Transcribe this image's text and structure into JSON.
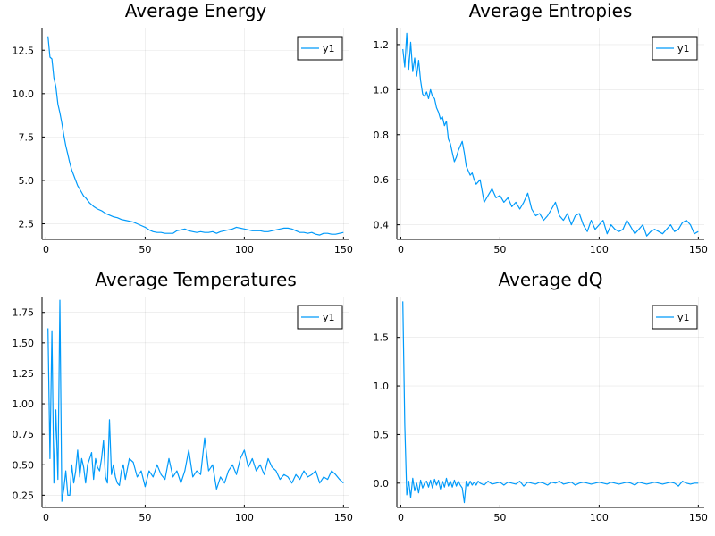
{
  "series_color": "#009AFA",
  "chart_data": [
    {
      "type": "line",
      "title": "Average Energy",
      "xlabel": "",
      "ylabel": "",
      "xlim": [
        -2,
        153
      ],
      "ylim": [
        1.6,
        13.8
      ],
      "xticks": [
        0,
        50,
        100,
        150
      ],
      "yticks": [
        2.5,
        5.0,
        7.5,
        10.0,
        12.5
      ],
      "ytick_labels": [
        "2.5",
        "5.0",
        "7.5",
        "10.0",
        "12.5"
      ],
      "grid": true,
      "legend_position": "top-right",
      "series": [
        {
          "name": "y1",
          "x": [
            1,
            2,
            3,
            4,
            5,
            6,
            7,
            8,
            9,
            10,
            11,
            12,
            13,
            14,
            15,
            16,
            17,
            18,
            19,
            20,
            22,
            24,
            26,
            28,
            30,
            32,
            34,
            36,
            38,
            40,
            42,
            44,
            46,
            48,
            50,
            52,
            54,
            56,
            58,
            60,
            62,
            64,
            66,
            68,
            70,
            72,
            74,
            76,
            78,
            80,
            82,
            84,
            86,
            88,
            90,
            92,
            94,
            96,
            98,
            100,
            102,
            104,
            106,
            108,
            110,
            112,
            114,
            116,
            118,
            120,
            122,
            124,
            126,
            128,
            130,
            132,
            134,
            136,
            138,
            140,
            142,
            144,
            146,
            148,
            150
          ],
          "y": [
            13.3,
            12.1,
            12.0,
            10.9,
            10.4,
            9.4,
            8.9,
            8.3,
            7.6,
            7.0,
            6.5,
            6.0,
            5.6,
            5.3,
            5.0,
            4.7,
            4.5,
            4.3,
            4.1,
            4.0,
            3.7,
            3.5,
            3.35,
            3.25,
            3.1,
            3.0,
            2.9,
            2.85,
            2.75,
            2.7,
            2.65,
            2.6,
            2.5,
            2.4,
            2.3,
            2.15,
            2.05,
            2.0,
            2.0,
            1.95,
            1.95,
            1.95,
            2.1,
            2.15,
            2.2,
            2.1,
            2.05,
            2.0,
            2.05,
            2.0,
            2.0,
            2.05,
            1.95,
            2.05,
            2.1,
            2.15,
            2.2,
            2.3,
            2.25,
            2.2,
            2.15,
            2.1,
            2.1,
            2.1,
            2.05,
            2.05,
            2.1,
            2.15,
            2.2,
            2.25,
            2.25,
            2.2,
            2.1,
            2.0,
            2.0,
            1.95,
            2.0,
            1.9,
            1.85,
            1.95,
            1.95,
            1.9,
            1.9,
            1.95,
            2.0
          ]
        }
      ]
    },
    {
      "type": "line",
      "title": "Average Entropies",
      "xlabel": "",
      "ylabel": "",
      "xlim": [
        -2,
        153
      ],
      "ylim": [
        0.335,
        1.275
      ],
      "xticks": [
        0,
        50,
        100,
        150
      ],
      "yticks": [
        0.4,
        0.6,
        0.8,
        1.0,
        1.2
      ],
      "ytick_labels": [
        "0.4",
        "0.6",
        "0.8",
        "1.0",
        "1.2"
      ],
      "grid": true,
      "legend_position": "top-right",
      "series": [
        {
          "name": "y1",
          "x": [
            1,
            2,
            3,
            4,
            5,
            6,
            7,
            8,
            9,
            10,
            11,
            12,
            13,
            14,
            15,
            16,
            17,
            18,
            19,
            20,
            21,
            22,
            23,
            24,
            25,
            26,
            27,
            28,
            29,
            30,
            31,
            32,
            33,
            34,
            35,
            36,
            37,
            38,
            39,
            40,
            42,
            44,
            46,
            48,
            50,
            52,
            54,
            56,
            58,
            60,
            62,
            64,
            66,
            68,
            70,
            72,
            74,
            76,
            78,
            80,
            82,
            84,
            86,
            88,
            90,
            92,
            94,
            96,
            98,
            100,
            102,
            104,
            106,
            108,
            110,
            112,
            114,
            116,
            118,
            120,
            122,
            124,
            126,
            128,
            130,
            132,
            134,
            136,
            138,
            140,
            142,
            144,
            146,
            148,
            150
          ],
          "y": [
            1.18,
            1.1,
            1.25,
            1.09,
            1.21,
            1.08,
            1.14,
            1.06,
            1.13,
            1.04,
            0.98,
            0.97,
            0.99,
            0.96,
            1.0,
            0.97,
            0.96,
            0.92,
            0.9,
            0.87,
            0.88,
            0.84,
            0.86,
            0.78,
            0.76,
            0.72,
            0.68,
            0.7,
            0.73,
            0.75,
            0.77,
            0.72,
            0.66,
            0.64,
            0.62,
            0.63,
            0.6,
            0.58,
            0.59,
            0.6,
            0.5,
            0.53,
            0.56,
            0.52,
            0.53,
            0.5,
            0.52,
            0.48,
            0.5,
            0.47,
            0.5,
            0.54,
            0.47,
            0.44,
            0.45,
            0.42,
            0.44,
            0.47,
            0.5,
            0.44,
            0.42,
            0.45,
            0.4,
            0.44,
            0.45,
            0.4,
            0.37,
            0.42,
            0.38,
            0.4,
            0.42,
            0.36,
            0.4,
            0.38,
            0.37,
            0.38,
            0.42,
            0.39,
            0.36,
            0.38,
            0.4,
            0.35,
            0.37,
            0.38,
            0.37,
            0.36,
            0.38,
            0.4,
            0.37,
            0.38,
            0.41,
            0.42,
            0.4,
            0.36,
            0.37
          ]
        }
      ]
    },
    {
      "type": "line",
      "title": "Average Temperatures",
      "xlabel": "",
      "ylabel": "",
      "xlim": [
        -2,
        153
      ],
      "ylim": [
        0.15,
        1.88
      ],
      "xticks": [
        0,
        50,
        100,
        150
      ],
      "yticks": [
        0.25,
        0.5,
        0.75,
        1.0,
        1.25,
        1.5,
        1.75
      ],
      "ytick_labels": [
        "0.25",
        "0.50",
        "0.75",
        "1.00",
        "1.25",
        "1.50",
        "1.75"
      ],
      "grid": true,
      "legend_position": "top-right",
      "series": [
        {
          "name": "y1",
          "x": [
            1,
            2,
            3,
            4,
            5,
            6,
            7,
            8,
            9,
            10,
            11,
            12,
            13,
            14,
            15,
            16,
            17,
            18,
            19,
            20,
            21,
            22,
            23,
            24,
            25,
            26,
            27,
            28,
            29,
            30,
            31,
            32,
            33,
            34,
            35,
            36,
            37,
            38,
            39,
            40,
            42,
            44,
            46,
            48,
            50,
            52,
            54,
            56,
            58,
            60,
            62,
            64,
            66,
            68,
            70,
            72,
            74,
            76,
            78,
            80,
            82,
            84,
            86,
            88,
            90,
            92,
            94,
            96,
            98,
            100,
            102,
            104,
            106,
            108,
            110,
            112,
            114,
            116,
            118,
            120,
            122,
            124,
            126,
            128,
            130,
            132,
            134,
            136,
            138,
            140,
            142,
            144,
            146,
            148,
            150
          ],
          "y": [
            1.62,
            0.55,
            1.6,
            0.35,
            0.95,
            0.38,
            1.85,
            0.2,
            0.3,
            0.45,
            0.25,
            0.25,
            0.5,
            0.35,
            0.45,
            0.62,
            0.4,
            0.55,
            0.48,
            0.35,
            0.5,
            0.55,
            0.6,
            0.38,
            0.55,
            0.48,
            0.45,
            0.55,
            0.7,
            0.4,
            0.35,
            0.87,
            0.42,
            0.5,
            0.4,
            0.35,
            0.33,
            0.45,
            0.5,
            0.38,
            0.55,
            0.52,
            0.4,
            0.45,
            0.32,
            0.45,
            0.4,
            0.5,
            0.42,
            0.38,
            0.55,
            0.4,
            0.45,
            0.35,
            0.45,
            0.62,
            0.4,
            0.45,
            0.42,
            0.72,
            0.45,
            0.5,
            0.3,
            0.4,
            0.35,
            0.45,
            0.5,
            0.42,
            0.55,
            0.62,
            0.48,
            0.55,
            0.45,
            0.5,
            0.42,
            0.55,
            0.48,
            0.45,
            0.38,
            0.42,
            0.4,
            0.35,
            0.42,
            0.38,
            0.45,
            0.4,
            0.42,
            0.45,
            0.35,
            0.4,
            0.38,
            0.45,
            0.42,
            0.38,
            0.35
          ]
        }
      ]
    },
    {
      "type": "line",
      "title": "Average dQ",
      "xlabel": "",
      "ylabel": "",
      "xlim": [
        -2,
        153
      ],
      "ylim": [
        -0.25,
        1.92
      ],
      "xticks": [
        0,
        50,
        100,
        150
      ],
      "yticks": [
        0.0,
        0.5,
        1.0,
        1.5
      ],
      "ytick_labels": [
        "0.0",
        "0.5",
        "1.0",
        "1.5"
      ],
      "grid": true,
      "legend_position": "top-right",
      "series": [
        {
          "name": "y1",
          "x": [
            1,
            2,
            3,
            4,
            5,
            6,
            7,
            8,
            9,
            10,
            11,
            12,
            13,
            14,
            15,
            16,
            17,
            18,
            19,
            20,
            21,
            22,
            23,
            24,
            25,
            26,
            27,
            28,
            29,
            30,
            31,
            32,
            33,
            34,
            35,
            36,
            37,
            38,
            39,
            40,
            42,
            44,
            46,
            48,
            50,
            52,
            54,
            56,
            58,
            60,
            62,
            64,
            66,
            68,
            70,
            72,
            74,
            76,
            78,
            80,
            82,
            84,
            86,
            88,
            90,
            92,
            94,
            96,
            98,
            100,
            102,
            104,
            106,
            108,
            110,
            112,
            114,
            116,
            118,
            120,
            122,
            124,
            126,
            128,
            130,
            132,
            134,
            136,
            138,
            140,
            142,
            144,
            146,
            148,
            150
          ],
          "y": [
            1.87,
            0.6,
            -0.12,
            0.02,
            -0.15,
            0.05,
            -0.08,
            0.0,
            -0.1,
            0.03,
            -0.05,
            0.0,
            0.02,
            -0.04,
            0.03,
            -0.05,
            0.04,
            -0.02,
            0.03,
            -0.06,
            0.02,
            -0.04,
            0.05,
            -0.03,
            0.02,
            -0.04,
            0.03,
            -0.03,
            0.02,
            -0.02,
            -0.05,
            -0.2,
            0.02,
            -0.03,
            0.02,
            -0.02,
            0.01,
            -0.02,
            0.02,
            0.0,
            -0.02,
            0.02,
            -0.01,
            0.0,
            0.01,
            -0.02,
            0.01,
            0.0,
            -0.01,
            0.02,
            -0.03,
            0.01,
            0.0,
            -0.01,
            0.01,
            0.0,
            -0.02,
            0.01,
            0.0,
            0.02,
            -0.01,
            0.0,
            0.01,
            -0.02,
            0.0,
            0.01,
            0.0,
            -0.01,
            0.0,
            0.01,
            0.0,
            -0.01,
            0.01,
            0.0,
            -0.01,
            0.0,
            0.01,
            0.0,
            -0.02,
            0.01,
            0.0,
            -0.01,
            0.0,
            0.01,
            0.0,
            -0.01,
            0.0,
            0.01,
            0.0,
            -0.03,
            0.02,
            0.0,
            -0.01,
            0.0,
            0.0
          ]
        }
      ]
    }
  ]
}
